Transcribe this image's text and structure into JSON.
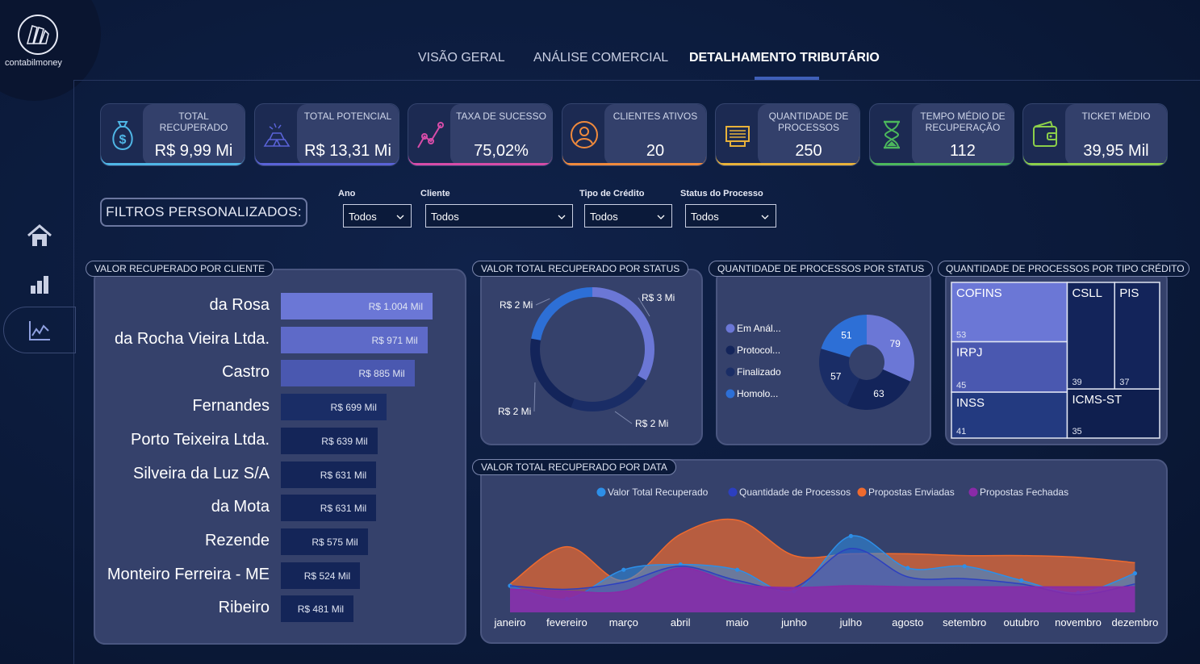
{
  "brand": {
    "name": "contabilmoney"
  },
  "tabs": [
    {
      "label": "VISÃO GERAL",
      "active": false
    },
    {
      "label": "ANÁLISE COMERCIAL",
      "active": false
    },
    {
      "label": "DETALHAMENTO TRIBUTÁRIO",
      "active": true
    }
  ],
  "sidebar": [
    {
      "icon": "home-icon"
    },
    {
      "icon": "bar-chart-icon"
    },
    {
      "icon": "line-chart-icon",
      "active": true
    }
  ],
  "kpis": [
    {
      "label": "TOTAL RECUPERADO",
      "value": "R$ 9,99 Mi",
      "icon": "money-bag-icon",
      "accent": "#4fb6e6"
    },
    {
      "label": "TOTAL POTENCIAL",
      "value": "R$ 13,31 Mi",
      "icon": "gold-bars-icon",
      "accent": "#5a63d8"
    },
    {
      "label": "TAXA DE SUCESSO",
      "value": "75,02%",
      "icon": "trend-line-icon",
      "accent": "#d64ca8"
    },
    {
      "label": "CLIENTES ATIVOS",
      "value": "20",
      "icon": "user-icon",
      "accent": "#f08a3c"
    },
    {
      "label": "QUANTIDADE DE PROCESSOS",
      "value": "250",
      "icon": "cash-register-icon",
      "accent": "#e8b23a"
    },
    {
      "label": "TEMPO MÉDIO DE RECUPERAÇÃO",
      "value": "112",
      "icon": "hourglass-icon",
      "accent": "#4cb85c"
    },
    {
      "label": "TICKET MÉDIO",
      "value": "39,95 Mil",
      "icon": "wallet-icon",
      "accent": "#8ccf4a"
    }
  ],
  "filters": {
    "button_label": "FILTROS PERSONALIZADOS:",
    "items": [
      {
        "label": "Ano",
        "value": "Todos"
      },
      {
        "label": "Cliente",
        "value": "Todos"
      },
      {
        "label": "Tipo de Crédito",
        "value": "Todos"
      },
      {
        "label": "Status do Processo",
        "value": "Todos"
      }
    ]
  },
  "cards": {
    "by_client": "VALOR RECUPERADO POR CLIENTE",
    "by_status_value": "VALOR TOTAL RECUPERADO POR STATUS",
    "by_status_qty": "QUANTIDADE DE PROCESSOS POR STATUS",
    "by_credit_type": "QUANTIDADE DE PROCESSOS POR TIPO CRÉDITO",
    "by_date": "VALOR TOTAL RECUPERADO POR DATA"
  },
  "chart_data": [
    {
      "type": "bar",
      "orientation": "horizontal",
      "categories": [
        "da Rosa",
        "da Rocha Vieira Ltda.",
        "Castro",
        "Fernandes",
        "Porto Teixeira Ltda.",
        "Silveira da Luz S/A",
        "da Mota",
        "Rezende",
        "Monteiro Ferreira - ME",
        "Ribeiro"
      ],
      "values": [
        1004,
        971,
        885,
        699,
        639,
        631,
        631,
        575,
        524,
        481
      ],
      "data_labels": [
        "R$ 1.004 Mil",
        "R$ 971 Mil",
        "R$ 885 Mil",
        "R$ 699 Mil",
        "R$ 639 Mil",
        "R$ 631 Mil",
        "R$ 631 Mil",
        "R$ 575 Mil",
        "R$ 524 Mil",
        "R$ 481 Mil"
      ],
      "colors": [
        "#6b77d6",
        "#5e6ac8",
        "#4a58b0",
        "#1a2d66",
        "#142558",
        "#142558",
        "#142558",
        "#142558",
        "#142558",
        "#142558"
      ]
    },
    {
      "type": "pie",
      "variant": "donut",
      "values": [
        3,
        2,
        2,
        2
      ],
      "data_labels": [
        "R$ 3 Mi",
        "R$ 2 Mi",
        "R$ 2 Mi",
        "R$ 2 Mi"
      ],
      "colors": [
        "#6b77d6",
        "#1a2d66",
        "#13245a",
        "#2d6fd6"
      ]
    },
    {
      "type": "pie",
      "variant": "donut",
      "legend": [
        "Em Anál...",
        "Protocol...",
        "Finalizado",
        "Homolo..."
      ],
      "legend_colors": [
        "#6b77d6",
        "#13245a",
        "#1a2d66",
        "#2d6fd6"
      ],
      "values": [
        79,
        63,
        57,
        51
      ],
      "colors": [
        "#6b77d6",
        "#13245a",
        "#1a2d66",
        "#2d6fd6"
      ]
    },
    {
      "type": "treemap",
      "items": [
        {
          "name": "COFINS",
          "value": 53,
          "color": "#6b77d6"
        },
        {
          "name": "IRPJ",
          "value": 45,
          "color": "#4a58b0"
        },
        {
          "name": "INSS",
          "value": 41,
          "color": "#233a80"
        },
        {
          "name": "CSLL",
          "value": 39,
          "color": "#13245a"
        },
        {
          "name": "PIS",
          "value": 37,
          "color": "#13245a"
        },
        {
          "name": "ICMS-ST",
          "value": 35,
          "color": "#0f1f4f"
        }
      ]
    },
    {
      "type": "area",
      "categories": [
        "janeiro",
        "fevereiro",
        "março",
        "abril",
        "maio",
        "junho",
        "julho",
        "agosto",
        "setembro",
        "outubro",
        "novembro",
        "dezembro"
      ],
      "series": [
        {
          "name": "Valor Total Recuperado",
          "color": "#2d8fe8",
          "values": [
            0.75,
            0.38,
            1.2,
            1.35,
            1.2,
            0.6,
            2.15,
            1.25,
            1.3,
            0.9,
            0.55,
            1.1
          ]
        },
        {
          "name": "Quantidade de Processos",
          "color": "#2c3fc0",
          "values": [
            0.75,
            0.65,
            0.85,
            1.3,
            0.9,
            0.7,
            1.8,
            1.0,
            0.95,
            0.8,
            0.5,
            0.8
          ]
        },
        {
          "name": "Propostas Enviadas",
          "color": "#ef6a2e",
          "values": [
            0.8,
            1.85,
            0.9,
            2.2,
            2.6,
            1.6,
            1.65,
            1.65,
            1.6,
            1.6,
            1.55,
            1.4
          ]
        },
        {
          "name": "Propostas Fechadas",
          "color": "#8a2aa8",
          "values": [
            0.65,
            0.6,
            0.6,
            1.25,
            0.8,
            0.7,
            0.75,
            0.72,
            0.72,
            0.72,
            0.72,
            0.72
          ]
        }
      ]
    }
  ]
}
